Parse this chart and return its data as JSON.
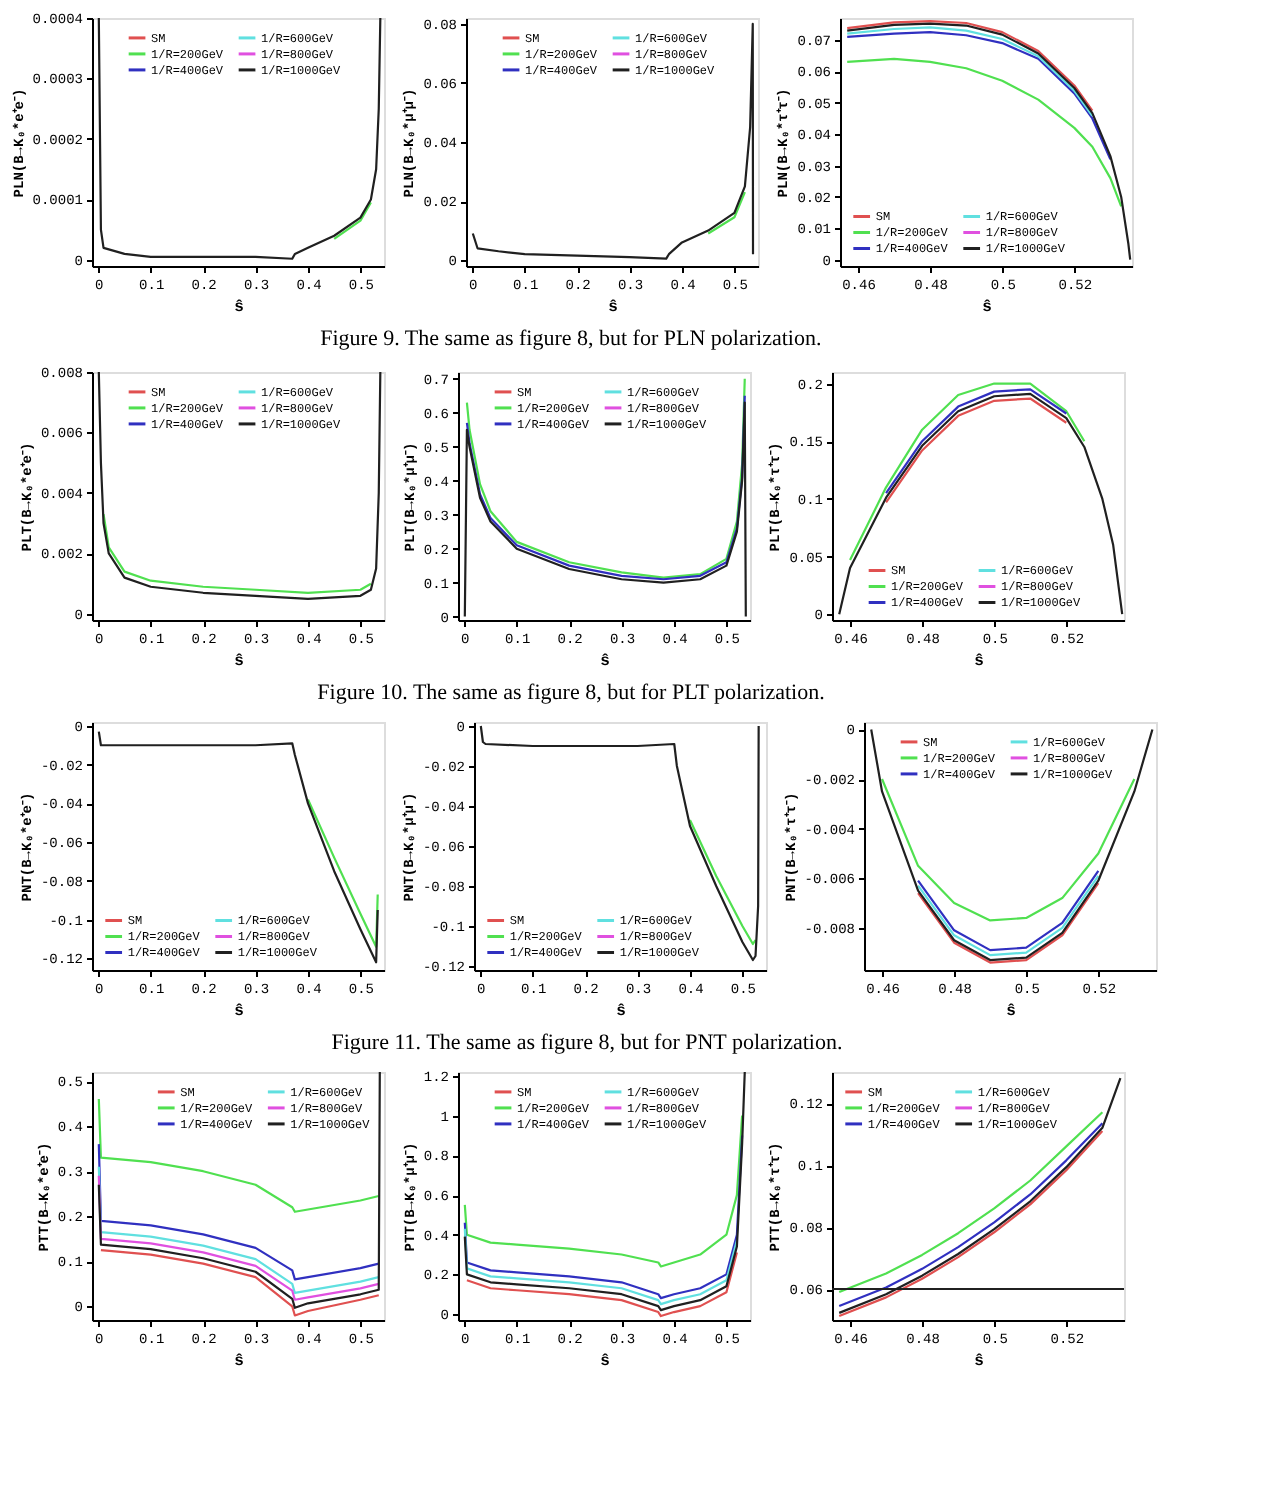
{
  "chart_data": [
    {
      "type": "line",
      "ylabel": "PLN(B→K₀*e⁺e⁻)",
      "xlabel": "ŝ",
      "xlim": [
        -0.012,
        0.545
      ],
      "xticks": [
        0,
        0.1,
        0.2,
        0.3,
        0.4,
        0.5
      ],
      "ylim": [
        -1e-05,
        0.0004
      ],
      "yticks": [
        0,
        0.0001,
        0.0002,
        0.0003,
        0.0004
      ],
      "legend": "top",
      "annotations": [
        "Figure 9. The same as figure 8, but for PLN polarization."
      ],
      "x": [
        0.001,
        0.005,
        0.01,
        0.05,
        0.1,
        0.2,
        0.3,
        0.37,
        0.375,
        0.4,
        0.45,
        0.5,
        0.52,
        0.53,
        0.535,
        0.538
      ],
      "series": [
        {
          "name": "SM",
          "color": "#e05050",
          "values": [
            null,
            null,
            null,
            null,
            null,
            null,
            null,
            null,
            null,
            null,
            null,
            null,
            null,
            null,
            null,
            null
          ]
        },
        {
          "name": "1/R=200GeV",
          "color": "#50e050",
          "values": [
            null,
            null,
            null,
            null,
            null,
            null,
            null,
            null,
            null,
            null,
            3.5e-05,
            6.5e-05,
            9.5e-05,
            null,
            null,
            null
          ]
        },
        {
          "name": "1/R=400GeV",
          "color": "#3030c0",
          "values": [
            null,
            null,
            null,
            null,
            null,
            null,
            null,
            null,
            null,
            null,
            null,
            null,
            null,
            null,
            null,
            null
          ]
        },
        {
          "name": "1/R=600GeV",
          "color": "#60e0e0",
          "values": [
            null,
            null,
            null,
            null,
            null,
            null,
            null,
            null,
            null,
            null,
            null,
            null,
            null,
            null,
            null,
            null
          ]
        },
        {
          "name": "1/R=800GeV",
          "color": "#e050e0",
          "values": [
            null,
            null,
            null,
            null,
            null,
            null,
            null,
            null,
            null,
            null,
            null,
            null,
            null,
            null,
            null,
            null
          ]
        },
        {
          "name": "1/R=1000GeV",
          "color": "#202020",
          "values": [
            0.0004,
            5e-05,
            2e-05,
            1e-05,
            5e-06,
            5e-06,
            5e-06,
            2e-06,
            1e-05,
            2e-05,
            4e-05,
            7e-05,
            0.0001,
            0.00015,
            0.00025,
            0.0004
          ]
        }
      ]
    },
    {
      "type": "line",
      "ylabel": "PLN(B→K₀*μ⁺μ⁻)",
      "xlabel": "ŝ",
      "xlim": [
        -0.012,
        0.545
      ],
      "xticks": [
        0,
        0.1,
        0.2,
        0.3,
        0.4,
        0.5
      ],
      "ylim": [
        -0.002,
        0.082
      ],
      "yticks": [
        0,
        0.02,
        0.04,
        0.06,
        0.08
      ],
      "legend": "top",
      "x": [
        0.001,
        0.01,
        0.05,
        0.1,
        0.2,
        0.3,
        0.37,
        0.375,
        0.4,
        0.45,
        0.5,
        0.52,
        0.53,
        0.535,
        0.5355
      ],
      "series": [
        {
          "name": "SM",
          "color": "#e05050",
          "values": [
            null,
            null,
            null,
            null,
            null,
            null,
            null,
            null,
            null,
            null,
            null,
            null,
            null,
            null,
            null
          ]
        },
        {
          "name": "1/R=200GeV",
          "color": "#50e050",
          "values": [
            null,
            null,
            null,
            null,
            null,
            null,
            null,
            null,
            null,
            0.009,
            0.0145,
            0.023,
            null,
            null,
            null
          ]
        },
        {
          "name": "1/R=400GeV",
          "color": "#3030c0",
          "values": [
            null,
            null,
            null,
            null,
            null,
            null,
            null,
            null,
            null,
            null,
            null,
            null,
            null,
            null,
            null
          ]
        },
        {
          "name": "1/R=600GeV",
          "color": "#60e0e0",
          "values": [
            null,
            null,
            null,
            null,
            null,
            null,
            null,
            null,
            null,
            null,
            null,
            null,
            null,
            null,
            null
          ]
        },
        {
          "name": "1/R=800GeV",
          "color": "#e050e0",
          "values": [
            null,
            null,
            null,
            null,
            null,
            null,
            null,
            null,
            null,
            null,
            null,
            null,
            null,
            null,
            null
          ]
        },
        {
          "name": "1/R=1000GeV",
          "color": "#202020",
          "values": [
            0.009,
            0.004,
            0.003,
            0.002,
            0.0015,
            0.001,
            0.0005,
            0.002,
            0.006,
            0.01,
            0.016,
            0.025,
            0.045,
            0.08,
            0.002
          ]
        }
      ]
    },
    {
      "type": "line",
      "ylabel": "PLN(B→K₀*τ⁺τ⁻)",
      "xlabel": "ŝ",
      "xlim": [
        0.455,
        0.536
      ],
      "xticks": [
        0.46,
        0.48,
        0.5,
        0.52
      ],
      "ylim": [
        -0.002,
        0.077
      ],
      "yticks": [
        0,
        0.01,
        0.02,
        0.03,
        0.04,
        0.05,
        0.06,
        0.07
      ],
      "legend": "bottom left",
      "x": [
        0.457,
        0.47,
        0.48,
        0.49,
        0.5,
        0.51,
        0.52,
        0.525,
        0.53,
        0.533,
        0.535,
        0.5355
      ],
      "series": [
        {
          "name": "SM",
          "color": "#e05050",
          "values": [
            0.0738,
            0.0756,
            0.076,
            0.0754,
            0.0725,
            0.0665,
            0.0555,
            0.0475,
            null,
            null,
            null,
            null
          ]
        },
        {
          "name": "1/R=200GeV",
          "color": "#50e050",
          "values": [
            0.063,
            0.064,
            0.063,
            0.061,
            0.057,
            0.051,
            0.042,
            0.036,
            0.026,
            0.017,
            null,
            null
          ]
        },
        {
          "name": "1/R=400GeV",
          "color": "#3030c0",
          "values": [
            0.071,
            0.072,
            0.0725,
            0.0715,
            0.069,
            0.064,
            0.053,
            0.045,
            0.032,
            null,
            null,
            null
          ]
        },
        {
          "name": "1/R=600GeV",
          "color": "#60e0e0",
          "values": [
            0.072,
            0.0735,
            0.074,
            0.073,
            0.0703,
            0.0648,
            0.0538,
            0.0458,
            null,
            null,
            null,
            null
          ]
        },
        {
          "name": "1/R=800GeV",
          "color": "#e050e0",
          "values": [
            null,
            null,
            null,
            null,
            null,
            null,
            null,
            null,
            null,
            null,
            null,
            null
          ]
        },
        {
          "name": "1/R=1000GeV",
          "color": "#202020",
          "values": [
            0.073,
            0.0748,
            0.0752,
            0.0746,
            0.0717,
            0.0657,
            0.0547,
            0.0467,
            0.033,
            0.02,
            0.005,
            0
          ]
        }
      ]
    },
    {
      "type": "line",
      "ylabel": "PLT(B→K₀*e⁺e⁻)",
      "xlabel": "ŝ",
      "xlim": [
        -0.012,
        0.545
      ],
      "xticks": [
        0,
        0.1,
        0.2,
        0.3,
        0.4,
        0.5
      ],
      "ylim": [
        -0.0002,
        0.008
      ],
      "yticks": [
        0,
        0.002,
        0.004,
        0.006,
        0.008
      ],
      "legend": "top",
      "annotations": [
        "Figure 10. The same as figure 8, but for PLT polarization."
      ],
      "x": [
        0.001,
        0.005,
        0.01,
        0.02,
        0.05,
        0.1,
        0.2,
        0.3,
        0.4,
        0.5,
        0.52,
        0.53,
        0.535,
        0.538
      ],
      "series": [
        {
          "name": "SM",
          "color": "#e05050",
          "values": [
            null,
            null,
            null,
            null,
            null,
            null,
            null,
            null,
            null,
            null,
            null,
            null,
            null,
            null
          ]
        },
        {
          "name": "1/R=200GeV",
          "color": "#50e050",
          "values": [
            null,
            null,
            0.0033,
            0.0022,
            0.0014,
            0.0011,
            0.0009,
            0.0008,
            0.0007,
            0.0008,
            0.001,
            null,
            null,
            null
          ]
        },
        {
          "name": "1/R=400GeV",
          "color": "#3030c0",
          "values": [
            null,
            null,
            null,
            null,
            null,
            null,
            null,
            null,
            null,
            null,
            null,
            null,
            null,
            null
          ]
        },
        {
          "name": "1/R=600GeV",
          "color": "#60e0e0",
          "values": [
            null,
            null,
            null,
            null,
            null,
            null,
            null,
            null,
            null,
            null,
            null,
            null,
            null,
            null
          ]
        },
        {
          "name": "1/R=800GeV",
          "color": "#e050e0",
          "values": [
            null,
            null,
            null,
            null,
            null,
            null,
            null,
            null,
            null,
            null,
            null,
            null,
            null,
            null
          ]
        },
        {
          "name": "1/R=1000GeV",
          "color": "#202020",
          "values": [
            0.008,
            0.005,
            0.003,
            0.002,
            0.0012,
            0.0009,
            0.0007,
            0.0006,
            0.0005,
            0.0006,
            0.0008,
            0.0015,
            0.004,
            0.008
          ]
        }
      ]
    },
    {
      "type": "line",
      "ylabel": "PLT(B→K₀*μ⁺μ⁻)",
      "xlabel": "ŝ",
      "xlim": [
        -0.012,
        0.545
      ],
      "xticks": [
        0,
        0.1,
        0.2,
        0.3,
        0.4,
        0.5
      ],
      "ylim": [
        -0.01,
        0.72
      ],
      "yticks": [
        0,
        0.1,
        0.2,
        0.3,
        0.4,
        0.5,
        0.6,
        0.7
      ],
      "legend": "top",
      "x": [
        0.001,
        0.005,
        0.01,
        0.03,
        0.05,
        0.1,
        0.2,
        0.3,
        0.38,
        0.45,
        0.5,
        0.52,
        0.53,
        0.535,
        0.537
      ],
      "series": [
        {
          "name": "SM",
          "color": "#e05050",
          "values": [
            null,
            null,
            null,
            null,
            null,
            null,
            null,
            null,
            null,
            null,
            null,
            null,
            null,
            null,
            null
          ]
        },
        {
          "name": "1/R=200GeV",
          "color": "#50e050",
          "values": [
            null,
            0.63,
            0.55,
            0.39,
            0.31,
            0.22,
            0.16,
            0.13,
            0.115,
            0.125,
            0.17,
            0.28,
            0.45,
            0.7,
            null
          ]
        },
        {
          "name": "1/R=400GeV",
          "color": "#3030c0",
          "values": [
            null,
            0.57,
            0.51,
            0.36,
            0.29,
            0.21,
            0.15,
            0.12,
            0.11,
            0.12,
            0.16,
            0.26,
            0.41,
            0.65,
            null
          ]
        },
        {
          "name": "1/R=600GeV",
          "color": "#60e0e0",
          "values": [
            null,
            null,
            null,
            null,
            null,
            null,
            null,
            null,
            null,
            null,
            null,
            null,
            null,
            null,
            null
          ]
        },
        {
          "name": "1/R=800GeV",
          "color": "#e050e0",
          "values": [
            null,
            null,
            null,
            null,
            null,
            null,
            null,
            null,
            null,
            null,
            null,
            null,
            null,
            null,
            null
          ]
        },
        {
          "name": "1/R=1000GeV",
          "color": "#202020",
          "values": [
            0,
            0.55,
            0.5,
            0.35,
            0.28,
            0.2,
            0.14,
            0.11,
            0.1,
            0.11,
            0.15,
            0.25,
            0.4,
            0.63,
            0
          ]
        }
      ]
    },
    {
      "type": "line",
      "ylabel": "PLT(B→K₀*τ⁺τ⁻)",
      "xlabel": "ŝ",
      "xlim": [
        0.455,
        0.536
      ],
      "xticks": [
        0.46,
        0.48,
        0.5,
        0.52
      ],
      "ylim": [
        -0.005,
        0.21
      ],
      "yticks": [
        0,
        0.05,
        0.1,
        0.15,
        0.2
      ],
      "legend": "bottom",
      "x": [
        0.457,
        0.46,
        0.47,
        0.48,
        0.49,
        0.5,
        0.51,
        0.52,
        0.525,
        0.53,
        0.533,
        0.5355
      ],
      "series": [
        {
          "name": "SM",
          "color": "#e05050",
          "values": [
            null,
            null,
            0.097,
            0.142,
            0.172,
            0.185,
            0.187,
            0.166,
            null,
            null,
            null,
            null
          ]
        },
        {
          "name": "1/R=200GeV",
          "color": "#50e050",
          "values": [
            null,
            0.047,
            0.11,
            0.16,
            0.19,
            0.2,
            0.2,
            0.176,
            0.15,
            null,
            null,
            null
          ]
        },
        {
          "name": "1/R=400GeV",
          "color": "#3030c0",
          "values": [
            null,
            null,
            0.105,
            0.15,
            0.18,
            0.193,
            0.195,
            0.174,
            null,
            null,
            null,
            null
          ]
        },
        {
          "name": "1/R=600GeV",
          "color": "#60e0e0",
          "values": [
            null,
            null,
            null,
            null,
            null,
            null,
            null,
            null,
            null,
            null,
            null,
            null
          ]
        },
        {
          "name": "1/R=800GeV",
          "color": "#e050e0",
          "values": [
            null,
            null,
            null,
            null,
            null,
            null,
            null,
            null,
            null,
            null,
            null,
            null
          ]
        },
        {
          "name": "1/R=1000GeV",
          "color": "#202020",
          "values": [
            0,
            0.04,
            0.101,
            0.146,
            0.176,
            0.189,
            0.191,
            0.17,
            0.145,
            0.1,
            0.06,
            0
          ]
        }
      ]
    },
    {
      "type": "line",
      "ylabel": "PNT(B→K₀*e⁺e⁻)",
      "xlabel": "ŝ",
      "xlim": [
        -0.012,
        0.545
      ],
      "xticks": [
        0,
        0.1,
        0.2,
        0.3,
        0.4,
        0.5
      ],
      "ylim": [
        -0.126,
        0.002
      ],
      "yticks": [
        0,
        -0.02,
        -0.04,
        -0.06,
        -0.08,
        -0.1,
        -0.12
      ],
      "legend": "bottom left",
      "annotations": [
        "Figure 11. The same as figure 8, but for PNT polarization."
      ],
      "x": [
        0.001,
        0.005,
        0.1,
        0.2,
        0.3,
        0.37,
        0.375,
        0.4,
        0.45,
        0.5,
        0.53,
        0.533
      ],
      "series": [
        {
          "name": "SM",
          "color": "#e05050",
          "values": [
            null,
            null,
            null,
            null,
            null,
            null,
            null,
            null,
            null,
            null,
            null,
            null
          ]
        },
        {
          "name": "1/R=200GeV",
          "color": "#50e050",
          "values": [
            null,
            null,
            null,
            null,
            null,
            null,
            null,
            -0.038,
            -0.068,
            -0.097,
            -0.114,
            -0.087
          ]
        },
        {
          "name": "1/R=400GeV",
          "color": "#3030c0",
          "values": [
            null,
            null,
            null,
            null,
            null,
            null,
            null,
            null,
            null,
            null,
            null,
            null
          ]
        },
        {
          "name": "1/R=600GeV",
          "color": "#60e0e0",
          "values": [
            null,
            null,
            null,
            null,
            null,
            null,
            null,
            null,
            null,
            null,
            null,
            null
          ]
        },
        {
          "name": "1/R=800GeV",
          "color": "#e050e0",
          "values": [
            null,
            null,
            null,
            null,
            null,
            null,
            null,
            null,
            null,
            null,
            null,
            null
          ]
        },
        {
          "name": "1/R=1000GeV",
          "color": "#202020",
          "values": [
            -0.003,
            -0.01,
            -0.01,
            -0.01,
            -0.01,
            -0.009,
            -0.015,
            -0.04,
            -0.075,
            -0.105,
            -0.122,
            -0.095
          ]
        }
      ]
    },
    {
      "type": "line",
      "ylabel": "PNT(B→K₀*μ⁺μ⁻)",
      "xlabel": "ŝ",
      "xlim": [
        -0.012,
        0.545
      ],
      "xticks": [
        0,
        0.1,
        0.2,
        0.3,
        0.4,
        0.5
      ],
      "ylim": [
        -0.122,
        0.002
      ],
      "yticks": [
        0,
        -0.02,
        -0.04,
        -0.06,
        -0.08,
        -0.1,
        -0.12
      ],
      "legend": "bottom left",
      "x": [
        0.001,
        0.005,
        0.01,
        0.1,
        0.3,
        0.37,
        0.375,
        0.4,
        0.45,
        0.5,
        0.52,
        0.525,
        0.53,
        0.531
      ],
      "series": [
        {
          "name": "SM",
          "color": "#e05050",
          "values": [
            null,
            null,
            null,
            null,
            null,
            null,
            null,
            null,
            null,
            null,
            null,
            null,
            null,
            null
          ]
        },
        {
          "name": "1/R=200GeV",
          "color": "#50e050",
          "values": [
            null,
            null,
            null,
            null,
            null,
            null,
            null,
            -0.047,
            -0.075,
            -0.1,
            -0.109,
            -0.107,
            null,
            null
          ]
        },
        {
          "name": "1/R=400GeV",
          "color": "#3030c0",
          "values": [
            null,
            null,
            null,
            null,
            null,
            null,
            null,
            null,
            null,
            null,
            null,
            null,
            null,
            null
          ]
        },
        {
          "name": "1/R=600GeV",
          "color": "#60e0e0",
          "values": [
            null,
            null,
            null,
            null,
            null,
            null,
            null,
            null,
            null,
            null,
            null,
            null,
            null,
            null
          ]
        },
        {
          "name": "1/R=800GeV",
          "color": "#e050e0",
          "values": [
            null,
            null,
            null,
            null,
            null,
            null,
            null,
            null,
            null,
            null,
            null,
            null,
            null,
            null
          ]
        },
        {
          "name": "1/R=1000GeV",
          "color": "#202020",
          "values": [
            0,
            -0.008,
            -0.009,
            -0.01,
            -0.01,
            -0.009,
            -0.02,
            -0.05,
            -0.08,
            -0.108,
            -0.117,
            -0.115,
            -0.09,
            0
          ]
        }
      ]
    },
    {
      "type": "line",
      "ylabel": "PNT(B→K₀*τ⁺τ⁻)",
      "xlabel": "ŝ",
      "xlim": [
        0.455,
        0.536
      ],
      "xticks": [
        0.46,
        0.48,
        0.5,
        0.52
      ],
      "ylim": [
        -0.0097,
        0.0003
      ],
      "yticks": [
        0,
        -0.002,
        -0.004,
        -0.006,
        -0.008
      ],
      "legend": "top",
      "x": [
        0.457,
        0.46,
        0.47,
        0.48,
        0.49,
        0.5,
        0.51,
        0.52,
        0.53,
        0.535
      ],
      "series": [
        {
          "name": "SM",
          "color": "#e05050",
          "values": [
            null,
            null,
            -0.0066,
            -0.0086,
            -0.0094,
            -0.0093,
            -0.0083,
            -0.0062,
            null,
            null
          ]
        },
        {
          "name": "1/R=200GeV",
          "color": "#50e050",
          "values": [
            null,
            -0.002,
            -0.0055,
            -0.007,
            -0.0077,
            -0.0076,
            -0.0068,
            -0.005,
            -0.002,
            null
          ]
        },
        {
          "name": "1/R=400GeV",
          "color": "#3030c0",
          "values": [
            null,
            null,
            -0.0061,
            -0.0081,
            -0.0089,
            -0.0088,
            -0.0078,
            -0.0057,
            null,
            null
          ]
        },
        {
          "name": "1/R=600GeV",
          "color": "#60e0e0",
          "values": [
            null,
            null,
            -0.0063,
            -0.0083,
            -0.0091,
            -0.009,
            -0.008,
            -0.0059,
            null,
            null
          ]
        },
        {
          "name": "1/R=800GeV",
          "color": "#e050e0",
          "values": [
            null,
            null,
            null,
            null,
            null,
            null,
            null,
            null,
            null,
            null
          ]
        },
        {
          "name": "1/R=1000GeV",
          "color": "#202020",
          "values": [
            0,
            -0.0025,
            -0.0065,
            -0.0085,
            -0.0093,
            -0.0092,
            -0.0082,
            -0.0061,
            -0.0025,
            0
          ]
        }
      ]
    },
    {
      "type": "line",
      "ylabel": "PTT(B→K₀*e⁺e⁻)",
      "xlabel": "ŝ",
      "xlim": [
        -0.012,
        0.545
      ],
      "xticks": [
        0,
        0.1,
        0.2,
        0.3,
        0.4,
        0.5
      ],
      "ylim": [
        -0.03,
        0.52
      ],
      "yticks": [
        0,
        0.1,
        0.2,
        0.3,
        0.4,
        0.5
      ],
      "legend": "top right",
      "x": [
        0.001,
        0.005,
        0.1,
        0.2,
        0.3,
        0.37,
        0.375,
        0.4,
        0.5,
        0.535,
        0.537
      ],
      "series": [
        {
          "name": "SM",
          "color": "#e05050",
          "values": [
            null,
            0.125,
            0.115,
            0.095,
            0.065,
            0.0,
            -0.02,
            -0.01,
            0.015,
            0.025,
            null
          ]
        },
        {
          "name": "1/R=200GeV",
          "color": "#50e050",
          "values": [
            0.46,
            0.33,
            0.32,
            0.3,
            0.27,
            0.22,
            0.21,
            0.215,
            0.235,
            0.245,
            null
          ]
        },
        {
          "name": "1/R=400GeV",
          "color": "#3030c0",
          "values": [
            0.36,
            0.19,
            0.18,
            0.16,
            0.13,
            0.08,
            0.06,
            0.065,
            0.085,
            0.095,
            null
          ]
        },
        {
          "name": "1/R=600GeV",
          "color": "#60e0e0",
          "values": [
            0.31,
            0.165,
            0.155,
            0.135,
            0.105,
            0.05,
            0.03,
            0.035,
            0.055,
            0.065,
            null
          ]
        },
        {
          "name": "1/R=800GeV",
          "color": "#e050e0",
          "values": [
            0.29,
            0.15,
            0.14,
            0.12,
            0.09,
            0.035,
            0.015,
            0.02,
            0.04,
            0.05,
            null
          ]
        },
        {
          "name": "1/R=1000GeV",
          "color": "#202020",
          "values": [
            0.27,
            0.137,
            0.127,
            0.107,
            0.077,
            0.017,
            -0.003,
            0.007,
            0.027,
            0.037,
            0.52
          ]
        }
      ]
    },
    {
      "type": "line",
      "ylabel": "PTT(B→K₀*μ⁺μ⁻)",
      "xlabel": "ŝ",
      "xlim": [
        -0.012,
        0.545
      ],
      "xticks": [
        0,
        0.1,
        0.2,
        0.3,
        0.4,
        0.5
      ],
      "ylim": [
        -0.03,
        1.22
      ],
      "yticks": [
        0,
        0.2,
        0.4,
        0.6,
        0.8,
        1,
        1.2
      ],
      "legend": "top",
      "x": [
        0.001,
        0.005,
        0.05,
        0.1,
        0.2,
        0.3,
        0.37,
        0.375,
        0.4,
        0.45,
        0.5,
        0.52,
        0.53,
        0.535
      ],
      "series": [
        {
          "name": "SM",
          "color": "#e05050",
          "values": [
            null,
            0.17,
            0.13,
            0.12,
            0.1,
            0.07,
            0.01,
            -0.01,
            0.01,
            0.04,
            0.11,
            0.31,
            null,
            null
          ]
        },
        {
          "name": "1/R=200GeV",
          "color": "#50e050",
          "values": [
            0.55,
            0.4,
            0.36,
            0.35,
            0.33,
            0.3,
            0.26,
            0.24,
            0.26,
            0.3,
            0.4,
            0.6,
            1.0,
            null
          ]
        },
        {
          "name": "1/R=400GeV",
          "color": "#3030c0",
          "values": [
            0.46,
            0.26,
            0.22,
            0.21,
            0.19,
            0.16,
            0.1,
            0.08,
            0.1,
            0.13,
            0.2,
            0.4,
            0.9,
            null
          ]
        },
        {
          "name": "1/R=600GeV",
          "color": "#60e0e0",
          "values": [
            0.43,
            0.23,
            0.19,
            0.18,
            0.16,
            0.13,
            0.07,
            0.05,
            0.07,
            0.1,
            0.17,
            0.37,
            null,
            null
          ]
        },
        {
          "name": "1/R=800GeV",
          "color": "#e050e0",
          "values": [
            null,
            null,
            null,
            null,
            null,
            null,
            null,
            null,
            null,
            null,
            null,
            null,
            null,
            null
          ]
        },
        {
          "name": "1/R=1000GeV",
          "color": "#202020",
          "values": [
            0.39,
            0.2,
            0.16,
            0.15,
            0.13,
            0.1,
            0.04,
            0.02,
            0.04,
            0.07,
            0.14,
            0.34,
            0.86,
            1.22
          ]
        }
      ]
    },
    {
      "type": "line",
      "ylabel": "PTT(B→K₀*τ⁺τ⁻)",
      "xlabel": "ŝ",
      "xlim": [
        0.455,
        0.536
      ],
      "xticks": [
        0.46,
        0.48,
        0.5,
        0.52
      ],
      "ylim": [
        0.05,
        0.13
      ],
      "yticks": [
        0.06,
        0.08,
        0.1,
        0.12
      ],
      "legend": "top left",
      "ref_lines": [
        {
          "axis": "y",
          "value": 0.06,
          "color": "#202020"
        }
      ],
      "x": [
        0.457,
        0.47,
        0.48,
        0.49,
        0.5,
        0.51,
        0.52,
        0.53,
        0.535
      ],
      "series": [
        {
          "name": "SM",
          "color": "#e05050",
          "values": [
            0.0513,
            0.0573,
            0.0633,
            0.0703,
            0.0783,
            0.0873,
            0.0983,
            0.111,
            null
          ]
        },
        {
          "name": "1/R=200GeV",
          "color": "#50e050",
          "values": [
            0.059,
            0.065,
            0.071,
            0.078,
            0.086,
            0.095,
            0.106,
            0.117,
            null
          ]
        },
        {
          "name": "1/R=400GeV",
          "color": "#3030c0",
          "values": [
            0.0545,
            0.0605,
            0.0665,
            0.0735,
            0.0815,
            0.0905,
            0.1015,
            0.1135,
            null
          ]
        },
        {
          "name": "1/R=600GeV",
          "color": "#60e0e0",
          "values": [
            null,
            null,
            null,
            null,
            null,
            null,
            null,
            null,
            null
          ]
        },
        {
          "name": "1/R=800GeV",
          "color": "#e050e0",
          "values": [
            null,
            null,
            null,
            null,
            null,
            null,
            null,
            null,
            null
          ]
        },
        {
          "name": "1/R=1000GeV",
          "color": "#202020",
          "values": [
            0.0523,
            0.0583,
            0.0643,
            0.0713,
            0.0793,
            0.0883,
            0.0993,
            0.112,
            0.128
          ]
        }
      ]
    }
  ]
}
